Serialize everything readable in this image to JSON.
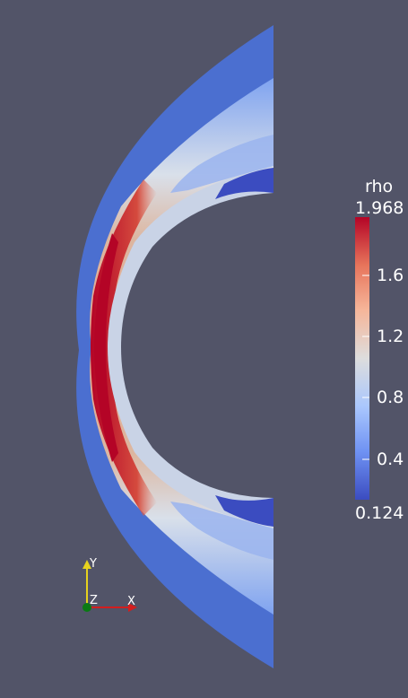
{
  "colorbar": {
    "title": "rho",
    "max_label": "1.968",
    "min_label": "0.124",
    "tick_labels": [
      "1.6",
      "1.2",
      "0.8",
      "0.4"
    ],
    "colormap": [
      "#3b4cc0",
      "#6f92f3",
      "#aac7fd",
      "#dddddd",
      "#f6b69a",
      "#e7745b",
      "#b40426"
    ]
  },
  "axes_triad": {
    "x_label": "X",
    "y_label": "Y",
    "z_label": "Z",
    "x_color": "#d21e1e",
    "y_color": "#e6d21e",
    "z_color": "#0a7a14"
  },
  "field": {
    "variable": "rho",
    "range": [
      0.124,
      1.968
    ]
  }
}
